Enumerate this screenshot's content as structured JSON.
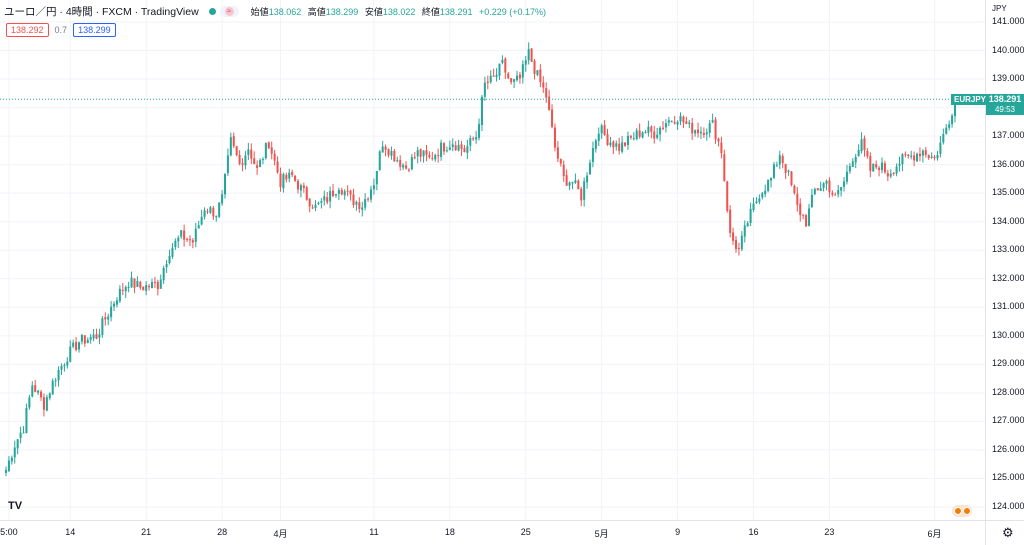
{
  "header": {
    "title": "ユーロ／円 · 4時間 · FXCM · TradingView",
    "status_icon": "market-open-dot",
    "open_label": "始値",
    "open_value": "138.062",
    "high_label": "高値",
    "high_value": "138.299",
    "low_label": "安値",
    "low_value": "138.022",
    "close_label": "終値",
    "close_value": "138.291",
    "change": "+0.229 (+0.17%)"
  },
  "quote": {
    "bid": "138.292",
    "spread": "0.7",
    "ask": "138.299"
  },
  "price_scale": {
    "unit": "JPY",
    "last_price": "138.291",
    "symbol": "EURJPY",
    "countdown": "49:53"
  },
  "footer": {
    "logo": "TV",
    "settings_icon": "gear-icon"
  },
  "colors": {
    "up": "#26a69a",
    "down": "#ef5350",
    "grid": "#f0f3fa",
    "last_line": "#26a69a"
  },
  "chart_data": {
    "type": "candlestick",
    "title": "ユーロ／円",
    "timeframe": "4時間",
    "source": "FXCM",
    "ylim": [
      123.5,
      141.5
    ],
    "yticks": [
      "124.000",
      "125.000",
      "126.000",
      "127.000",
      "128.000",
      "129.000",
      "130.000",
      "131.000",
      "132.000",
      "133.000",
      "134.000",
      "135.000",
      "136.000",
      "137.000",
      "138.000",
      "139.000",
      "140.000",
      "141.000"
    ],
    "xticks": [
      {
        "label": "5:00",
        "i": 1
      },
      {
        "label": "14",
        "i": 22
      },
      {
        "label": "21",
        "i": 48
      },
      {
        "label": "28",
        "i": 74
      },
      {
        "label": "4月",
        "i": 94
      },
      {
        "label": "11",
        "i": 126
      },
      {
        "label": "18",
        "i": 152
      },
      {
        "label": "25",
        "i": 178
      },
      {
        "label": "5月",
        "i": 204
      },
      {
        "label": "9",
        "i": 230
      },
      {
        "label": "16",
        "i": 256
      },
      {
        "label": "23",
        "i": 282
      },
      {
        "label": "6月",
        "i": 318
      }
    ],
    "num_bars": 326,
    "last_price": 138.291,
    "anchors": [
      [
        0,
        125.3
      ],
      [
        3,
        126.2
      ],
      [
        6,
        126.8
      ],
      [
        9,
        128.3
      ],
      [
        13,
        127.6
      ],
      [
        17,
        128.6
      ],
      [
        21,
        129.3
      ],
      [
        25,
        129.8
      ],
      [
        31,
        130.0
      ],
      [
        35,
        130.8
      ],
      [
        38,
        131.4
      ],
      [
        42,
        131.9
      ],
      [
        46,
        131.7
      ],
      [
        52,
        131.8
      ],
      [
        56,
        133.0
      ],
      [
        60,
        133.5
      ],
      [
        64,
        133.3
      ],
      [
        68,
        134.5
      ],
      [
        72,
        134.3
      ],
      [
        74,
        134.8
      ],
      [
        77,
        136.8
      ],
      [
        80,
        136.0
      ],
      [
        83,
        136.6
      ],
      [
        86,
        135.8
      ],
      [
        90,
        136.8
      ],
      [
        94,
        135.4
      ],
      [
        98,
        135.6
      ],
      [
        102,
        135.0
      ],
      [
        106,
        134.5
      ],
      [
        110,
        134.8
      ],
      [
        114,
        135.3
      ],
      [
        118,
        134.8
      ],
      [
        122,
        134.6
      ],
      [
        126,
        135.4
      ],
      [
        129,
        136.8
      ],
      [
        133,
        136.3
      ],
      [
        137,
        135.9
      ],
      [
        141,
        136.4
      ],
      [
        145,
        136.2
      ],
      [
        149,
        136.6
      ],
      [
        153,
        136.8
      ],
      [
        157,
        136.5
      ],
      [
        161,
        137.0
      ],
      [
        164,
        138.8
      ],
      [
        167,
        139.0
      ],
      [
        170,
        139.5
      ],
      [
        173,
        138.8
      ],
      [
        176,
        139.0
      ],
      [
        179,
        139.9
      ],
      [
        182,
        139.1
      ],
      [
        185,
        138.4
      ],
      [
        188,
        136.6
      ],
      [
        191,
        135.5
      ],
      [
        194,
        135.4
      ],
      [
        197,
        134.9
      ],
      [
        200,
        136.2
      ],
      [
        203,
        137.3
      ],
      [
        206,
        136.9
      ],
      [
        210,
        136.6
      ],
      [
        214,
        136.9
      ],
      [
        218,
        137.2
      ],
      [
        222,
        137.1
      ],
      [
        226,
        137.5
      ],
      [
        230,
        137.7
      ],
      [
        234,
        137.3
      ],
      [
        238,
        137.2
      ],
      [
        242,
        137.4
      ],
      [
        245,
        136.5
      ],
      [
        248,
        133.5
      ],
      [
        251,
        133.0
      ],
      [
        254,
        134.0
      ],
      [
        258,
        135.0
      ],
      [
        262,
        135.5
      ],
      [
        265,
        136.4
      ],
      [
        268,
        135.6
      ],
      [
        271,
        134.5
      ],
      [
        274,
        134.0
      ],
      [
        277,
        135.1
      ],
      [
        281,
        135.4
      ],
      [
        284,
        134.8
      ],
      [
        287,
        135.4
      ],
      [
        290,
        136.3
      ],
      [
        293,
        136.7
      ],
      [
        296,
        135.8
      ],
      [
        299,
        136.0
      ],
      [
        302,
        135.7
      ],
      [
        306,
        136.1
      ],
      [
        310,
        136.3
      ],
      [
        314,
        136.5
      ],
      [
        318,
        136.2
      ],
      [
        321,
        137.0
      ],
      [
        323,
        137.6
      ],
      [
        325,
        138.291
      ]
    ]
  }
}
